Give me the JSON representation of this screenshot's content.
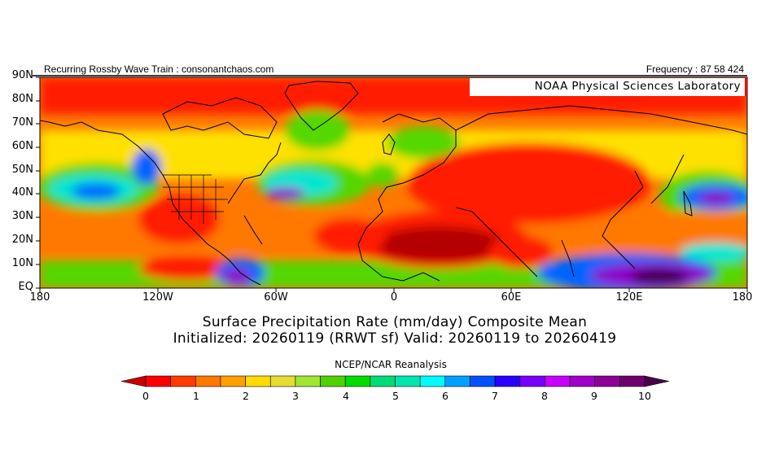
{
  "header": {
    "left": "Recurring Rossby Wave Train : consonantchaos.com",
    "right": "Frequency : 87 58 424"
  },
  "badge": "NOAA Physical Sciences Laboratory",
  "latitudes": [
    "90N",
    "80N",
    "70N",
    "60N",
    "50N",
    "40N",
    "30N",
    "20N",
    "10N",
    "EQ"
  ],
  "longitudes": [
    "180",
    "120W",
    "60W",
    "0",
    "60E",
    "120E",
    "180"
  ],
  "title": "Surface Precipitation Rate (mm/day) Composite Mean",
  "subtitle": "Initialized: 20260119 (RRWT sf) Valid: 20260119 to 20260419",
  "source": "NCEP/NCAR Reanalysis",
  "colorbar": {
    "labels": [
      "0",
      "1",
      "2",
      "3",
      "4",
      "5",
      "6",
      "7",
      "8",
      "9",
      "10"
    ],
    "colors": [
      "#c80000",
      "#ff0000",
      "#ff3c00",
      "#ff7800",
      "#ffa000",
      "#ffdc00",
      "#e6dc32",
      "#a0e632",
      "#50d200",
      "#00dc00",
      "#00dc78",
      "#00e6af",
      "#00faff",
      "#00a0ff",
      "#0050ff",
      "#2800ff",
      "#7800ff",
      "#c800ff",
      "#a000c8",
      "#8c0096",
      "#6e006e",
      "#4b004b"
    ]
  },
  "map_colors": {
    "dry_deep": "#b40000",
    "dry": "#ff1e00",
    "mid_orange": "#ff7800",
    "yellow": "#ffe100",
    "green": "#55d700",
    "cyan": "#00e6d2",
    "blue": "#0064ff",
    "purple": "#8c00c8",
    "deep_purple": "#460050",
    "coast": "#000000"
  }
}
